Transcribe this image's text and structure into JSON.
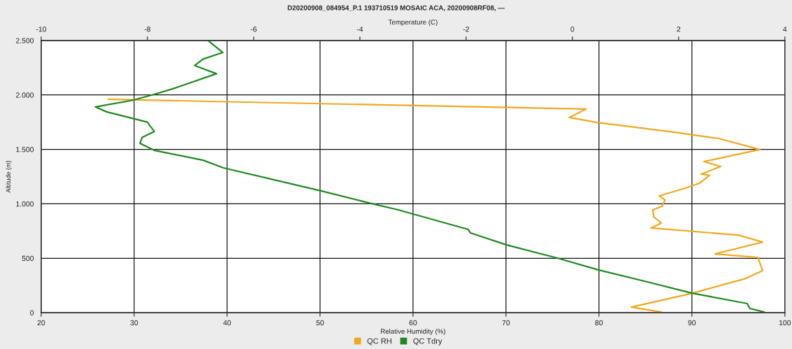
{
  "chart_data": {
    "type": "line",
    "title": "D20200908_084954_P.1 193710519 MOSAIC ACA, 20200908RF08, —",
    "xlabel": "Relative Humidity (%)",
    "x2label": "Temperature (C)",
    "ylabel": "Altitude (m)",
    "xlim": [
      20,
      100
    ],
    "xticks": [
      20,
      30,
      40,
      50,
      60,
      70,
      80,
      90,
      100
    ],
    "x2lim": [
      -10,
      4
    ],
    "x2ticks": [
      -10,
      -8,
      -6,
      -4,
      -2,
      0,
      2,
      4
    ],
    "ylim": [
      0,
      2500
    ],
    "yticks": [
      0,
      500,
      {
        "value": 1000,
        "label": "1.000"
      },
      {
        "value": 1500,
        "label": "1.500"
      },
      {
        "value": 2000,
        "label": "2.000"
      },
      {
        "value": 2500,
        "label": "2.500"
      }
    ],
    "grid": true,
    "legend": "bottom",
    "marker": "none",
    "line_style": "solid",
    "series": [
      {
        "name": "QC RH",
        "color": "#f0a81e",
        "x": [
          27.2,
          78.6,
          76.8,
          79.7,
          88.0,
          92.9,
          97.3,
          91.3,
          93.1,
          91.0,
          91.9,
          90.8,
          89.3,
          86.5,
          87.1,
          86.8,
          85.8,
          85.9,
          86.7,
          85.6,
          95.0,
          97.6,
          92.5,
          97.1,
          97.6,
          95.8,
          90.1,
          83.5,
          86.7
        ],
        "values": [
          1960,
          1870,
          1793,
          1748,
          1658,
          1600,
          1498,
          1388,
          1343,
          1273,
          1260,
          1189,
          1144,
          1073,
          1035,
          977,
          945,
          880,
          823,
          778,
          713,
          649,
          540,
          508,
          386,
          315,
          180,
          51,
          6
        ]
      },
      {
        "name": "QC Tdry",
        "color": "#1e8a1e",
        "axis": "x2",
        "x": [
          -6.86,
          -6.58,
          -6.95,
          -7.11,
          -6.7,
          -7.53,
          -7.91,
          -8.29,
          -8.98,
          -8.77,
          -8.0,
          -7.95,
          -7.87,
          -8.1,
          -8.14,
          -7.86,
          -6.95,
          -6.57,
          -4.72,
          -3.79,
          -3.28,
          -3.0,
          -1.96,
          -1.92,
          -1.24,
          -0.33,
          0.5,
          1.41,
          2.25,
          3.29,
          3.34,
          3.61
        ],
        "values": [
          2500,
          2390,
          2330,
          2270,
          2195,
          2055,
          2000,
          1950,
          1890,
          1845,
          1750,
          1715,
          1665,
          1610,
          1555,
          1490,
          1400,
          1330,
          1118,
          1003,
          945,
          906,
          765,
          733,
          623,
          508,
          392,
          283,
          180,
          84,
          39,
          6
        ]
      }
    ]
  }
}
